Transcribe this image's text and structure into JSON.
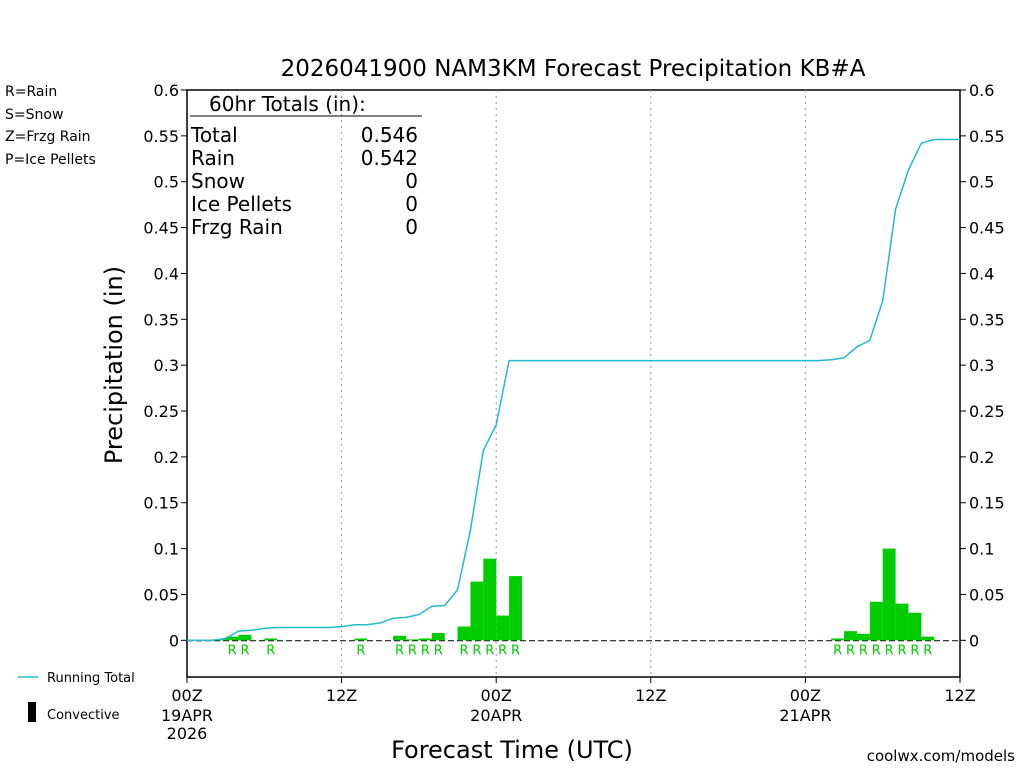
{
  "chart_data": {
    "type": "bar",
    "title": "2026041900 NAM3KM Forecast Precipitation KB#A",
    "xlabel": "Forecast Time (UTC)",
    "ylabel": "Precipitation (in)",
    "ylim": [
      -0.04,
      0.6
    ],
    "yticks": [
      0,
      0.05,
      0.1,
      0.15,
      0.2,
      0.25,
      0.3,
      0.35,
      0.4,
      0.45,
      0.5,
      0.55,
      0.6
    ],
    "ytick_labels": [
      "0",
      "0.05",
      "0.1",
      "0.15",
      "0.2",
      "0.25",
      "0.3",
      "0.35",
      "0.4",
      "0.45",
      "0.5",
      "0.55",
      "0.6"
    ],
    "xlim_hours": [
      0,
      60
    ],
    "xticks": [
      {
        "hour": 0,
        "line1": "00Z",
        "line2": "19APR",
        "line3": "2026"
      },
      {
        "hour": 12,
        "line1": "12Z",
        "line2": "",
        "line3": ""
      },
      {
        "hour": 24,
        "line1": "00Z",
        "line2": "20APR",
        "line3": ""
      },
      {
        "hour": 36,
        "line1": "12Z",
        "line2": "",
        "line3": ""
      },
      {
        "hour": 48,
        "line1": "00Z",
        "line2": "21APR",
        "line3": ""
      },
      {
        "hour": 60,
        "line1": "12Z",
        "line2": "",
        "line3": ""
      }
    ],
    "hourly_precip": {
      "hours": [
        1,
        2,
        3,
        4,
        5,
        6,
        7,
        8,
        9,
        10,
        11,
        12,
        13,
        14,
        15,
        16,
        17,
        18,
        19,
        20,
        21,
        22,
        23,
        24,
        25,
        26,
        27,
        28,
        29,
        30,
        31,
        32,
        33,
        34,
        35,
        36,
        37,
        38,
        39,
        40,
        41,
        42,
        43,
        44,
        45,
        46,
        47,
        48,
        49,
        50,
        51,
        52,
        53,
        54,
        55,
        56,
        57,
        58,
        59,
        60
      ],
      "values": [
        0,
        0,
        0.001,
        0.004,
        0.006,
        0,
        0.002,
        0,
        0,
        0,
        0,
        0,
        0,
        0.002,
        0,
        0,
        0.005,
        0.001,
        0.002,
        0.008,
        0,
        0.015,
        0.064,
        0.089,
        0.027,
        0.07,
        0,
        0,
        0,
        0,
        0,
        0,
        0,
        0,
        0,
        0,
        0,
        0,
        0,
        0,
        0,
        0,
        0,
        0,
        0,
        0,
        0,
        0,
        0,
        0,
        0.002,
        0.01,
        0.007,
        0.042,
        0.1,
        0.04,
        0.03,
        0.004,
        0,
        0
      ]
    },
    "running_total": {
      "name": "Running Total",
      "hours": [
        0,
        1,
        2,
        3,
        3.5,
        4,
        5,
        6,
        7,
        8,
        9,
        10,
        11,
        12,
        13,
        14,
        15,
        16,
        17,
        18,
        19,
        20,
        21,
        22,
        23,
        24,
        25,
        26,
        27,
        28,
        29,
        30,
        31,
        32,
        33,
        34,
        35,
        36,
        37,
        38,
        39,
        40,
        41,
        42,
        43,
        44,
        45,
        46,
        47,
        48,
        49,
        50,
        51,
        52,
        53,
        54,
        55,
        56,
        57,
        58,
        59,
        60
      ],
      "values": [
        0,
        0,
        0,
        0.002,
        0.006,
        0.01,
        0.011,
        0.013,
        0.014,
        0.014,
        0.014,
        0.014,
        0.014,
        0.015,
        0.017,
        0.017,
        0.019,
        0.024,
        0.025,
        0.028,
        0.037,
        0.038,
        0.055,
        0.12,
        0.207,
        0.235,
        0.305,
        0.305,
        0.305,
        0.305,
        0.305,
        0.305,
        0.305,
        0.305,
        0.305,
        0.305,
        0.305,
        0.305,
        0.305,
        0.305,
        0.305,
        0.305,
        0.305,
        0.305,
        0.305,
        0.305,
        0.305,
        0.305,
        0.305,
        0.305,
        0.305,
        0.306,
        0.308,
        0.32,
        0.327,
        0.37,
        0.47,
        0.513,
        0.542,
        0.546,
        0.546,
        0.546
      ]
    },
    "rain_markers": {
      "letter": "R",
      "hours": [
        4,
        5,
        7,
        14,
        17,
        18,
        19,
        20,
        22,
        23,
        24,
        25,
        26,
        51,
        52,
        53,
        54,
        55,
        56,
        57,
        58
      ]
    },
    "legend_types": [
      {
        "label": "R=Rain",
        "color": "#00dd00"
      },
      {
        "label": "S=Snow",
        "color": "#3333ee"
      },
      {
        "label": "Z=Frzg Rain",
        "color": "#ff8833"
      },
      {
        "label": "P=Ice Pellets",
        "color": "#ee2299"
      }
    ],
    "legend_lines": {
      "running_total": "Running Total",
      "convective": "Convective"
    },
    "totals_box": {
      "heading": "60hr Totals (in):",
      "rows": [
        {
          "label": "Total",
          "value": "0.546"
        },
        {
          "label": "Rain",
          "value": "0.542"
        },
        {
          "label": "Snow",
          "value": "0"
        },
        {
          "label": "Ice Pellets",
          "value": "0"
        },
        {
          "label": "Frzg Rain",
          "value": "0"
        }
      ]
    },
    "credit": "coolwx.com/models"
  },
  "colors": {
    "bar": "#00cc00",
    "running_total": "#22bbcc",
    "rain_letter": "#00cc00",
    "credit": "#ff2222",
    "grid": "#999999"
  }
}
